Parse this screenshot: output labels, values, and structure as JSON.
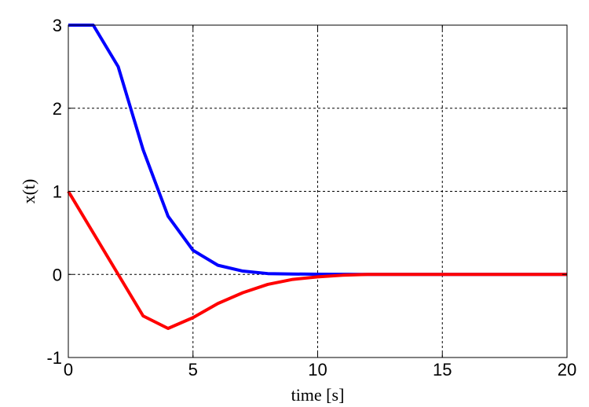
{
  "chart_data": {
    "type": "line",
    "title": "",
    "xlabel": "time [s]",
    "ylabel": "x(t)",
    "xlim": [
      0,
      20
    ],
    "ylim": [
      -1,
      3
    ],
    "xticks": [
      0,
      5,
      10,
      15,
      20
    ],
    "yticks": [
      -1,
      0,
      1,
      2,
      3
    ],
    "grid": true,
    "series": [
      {
        "color": "#0000ff",
        "x": [
          0,
          1,
          2,
          3,
          4,
          5,
          6,
          7,
          8,
          9,
          10,
          11,
          12,
          13,
          14,
          15,
          16,
          17,
          18,
          19,
          20
        ],
        "y": [
          3,
          3,
          2.5,
          1.5,
          0.7,
          0.29,
          0.11,
          0.04,
          0.01,
          0.005,
          0.002,
          0.001,
          0,
          0,
          0,
          0,
          0,
          0,
          0,
          0,
          0
        ]
      },
      {
        "color": "#ff0000",
        "x": [
          0,
          1,
          2,
          3,
          4,
          5,
          6,
          7,
          8,
          9,
          10,
          11,
          12,
          13,
          14,
          15,
          16,
          17,
          18,
          19,
          20
        ],
        "y": [
          1,
          0.5,
          0,
          -0.5,
          -0.65,
          -0.52,
          -0.35,
          -0.22,
          -0.12,
          -0.06,
          -0.03,
          -0.01,
          0,
          0,
          0,
          0,
          0,
          0,
          0,
          0,
          0
        ]
      }
    ]
  }
}
